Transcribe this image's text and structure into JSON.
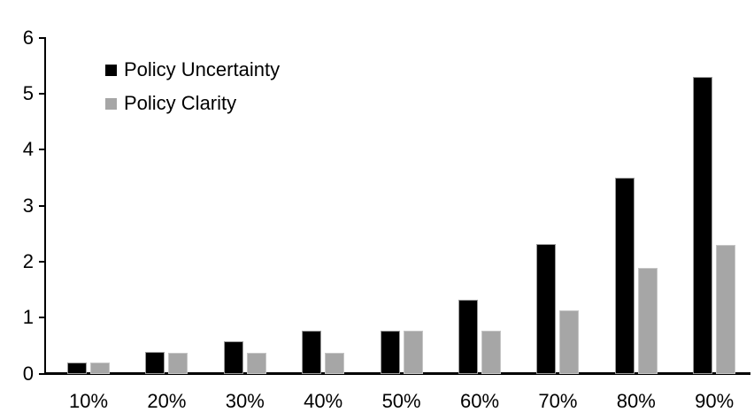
{
  "chart_data": {
    "type": "bar",
    "title": "",
    "xlabel": "",
    "ylabel": "",
    "categories": [
      "10%",
      "20%",
      "30%",
      "40%",
      "50%",
      "60%",
      "70%",
      "80%",
      "90%"
    ],
    "series": [
      {
        "name": "Policy Uncertainty",
        "color": "#000000",
        "values": [
          0.2,
          0.4,
          0.58,
          0.77,
          0.78,
          1.33,
          2.32,
          3.5,
          5.3
        ]
      },
      {
        "name": "Policy Clarity",
        "color": "#a6a6a6",
        "values": [
          0.2,
          0.38,
          0.38,
          0.38,
          0.77,
          0.77,
          1.14,
          1.9,
          2.3
        ]
      }
    ],
    "ylim": [
      0,
      6
    ],
    "yticks": [
      0,
      1,
      2,
      3,
      4,
      5,
      6
    ],
    "grid": false,
    "legend_position": "top-left-inside",
    "axis_color": "#000000",
    "background_color": "#ffffff"
  }
}
